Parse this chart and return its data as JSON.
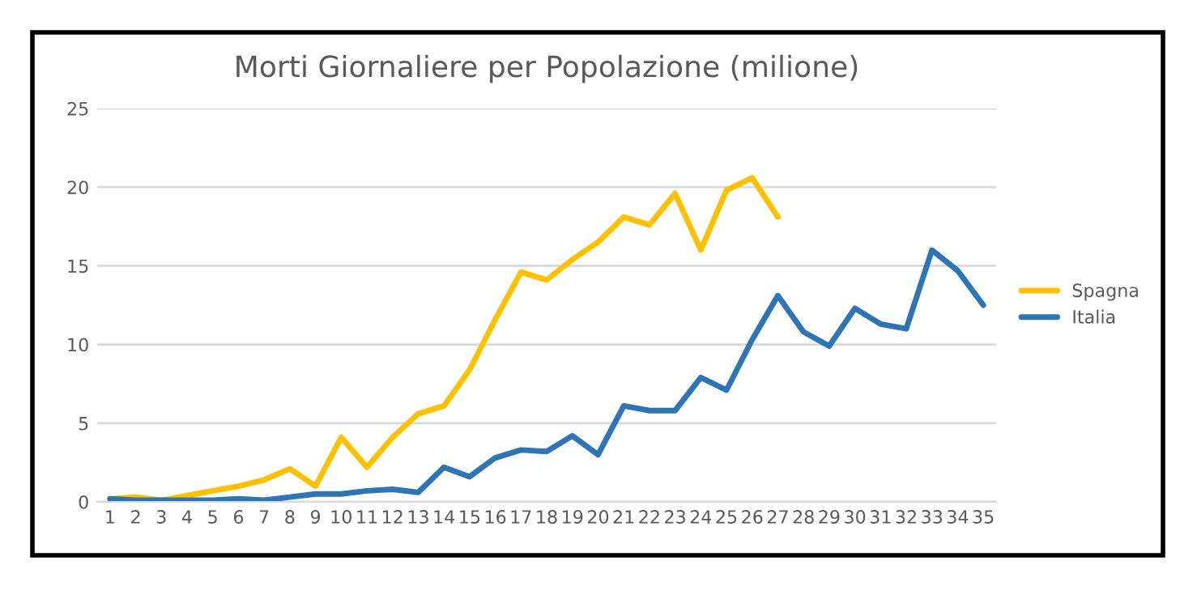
{
  "chart_data": {
    "type": "line",
    "title": "Morti Giornaliere per Popolazione (milione)",
    "categories": [
      "1",
      "2",
      "3",
      "4",
      "5",
      "6",
      "7",
      "8",
      "9",
      "10",
      "11",
      "12",
      "13",
      "14",
      "15",
      "16",
      "17",
      "18",
      "19",
      "20",
      "21",
      "22",
      "23",
      "24",
      "25",
      "26",
      "27",
      "28",
      "29",
      "30",
      "31",
      "32",
      "33",
      "34",
      "35"
    ],
    "series": [
      {
        "name": "Spagna",
        "color": "#ffc000",
        "values": [
          0.2,
          0.3,
          0.1,
          0.4,
          0.7,
          1.0,
          1.4,
          2.1,
          1.0,
          4.1,
          2.2,
          4.1,
          5.6,
          6.1,
          8.4,
          11.6,
          14.6,
          14.1,
          15.4,
          16.5,
          18.1,
          17.6,
          19.6,
          16.0,
          19.8,
          20.6,
          18.1,
          null,
          null,
          null,
          null,
          null,
          null,
          null,
          null
        ]
      },
      {
        "name": "Italia",
        "color": "#2e75b6",
        "values": [
          0.2,
          0.1,
          0.1,
          0.1,
          0.1,
          0.2,
          0.1,
          0.3,
          0.5,
          0.5,
          0.7,
          0.8,
          0.6,
          2.2,
          1.6,
          2.8,
          3.3,
          3.2,
          4.2,
          3.0,
          6.1,
          5.8,
          5.8,
          7.9,
          7.1,
          10.3,
          13.1,
          10.8,
          9.9,
          12.3,
          11.3,
          11.0,
          16.0,
          14.7,
          12.5
        ]
      }
    ],
    "ylim": [
      0,
      25
    ],
    "yticks": [
      0,
      5,
      10,
      15,
      20,
      25
    ],
    "grid": "y",
    "legend": "right",
    "marker": "none",
    "line_style": "solid"
  }
}
